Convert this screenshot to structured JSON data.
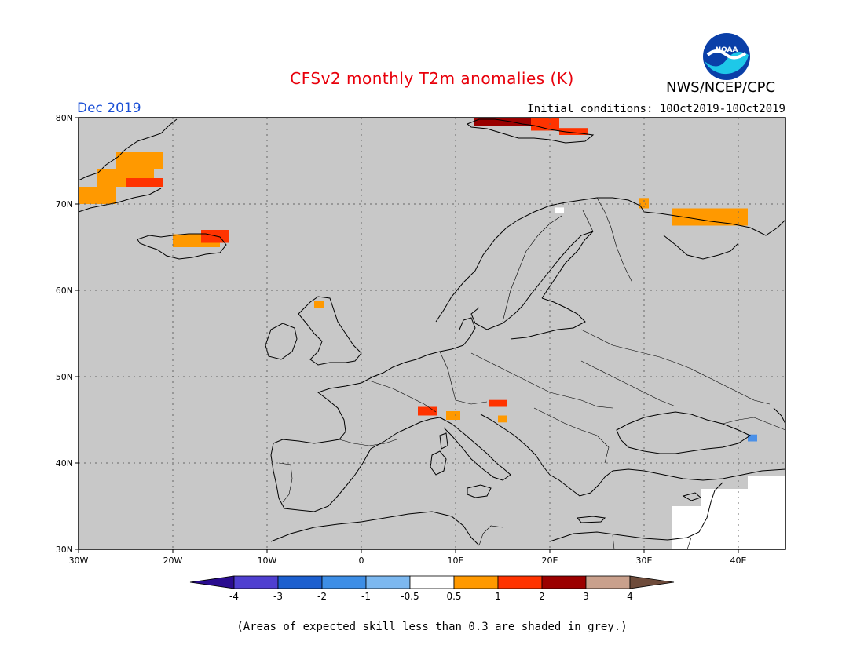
{
  "header": {
    "title": "CFSv2 monthly T2m anomalies (K)",
    "title_color": "#e8000b",
    "agency": "NWS/NCEP/CPC",
    "logo_text": "NOAA",
    "month_label": "Dec 2019",
    "month_color": "#1a4fd6",
    "initial_conditions": "Initial conditions: 10Oct2019-10Oct2019"
  },
  "map": {
    "lon_range": [
      -30,
      45
    ],
    "lat_range": [
      30,
      80
    ],
    "background": "#c8c8c8",
    "lat_ticks": [
      {
        "value": 80,
        "label": "80N"
      },
      {
        "value": 70,
        "label": "70N"
      },
      {
        "value": 60,
        "label": "60N"
      },
      {
        "value": 50,
        "label": "50N"
      },
      {
        "value": 40,
        "label": "40N"
      },
      {
        "value": 30,
        "label": "30N"
      }
    ],
    "lon_ticks": [
      {
        "value": -30,
        "label": "30W"
      },
      {
        "value": -20,
        "label": "20W"
      },
      {
        "value": -10,
        "label": "10W"
      },
      {
        "value": 0,
        "label": "0"
      },
      {
        "value": 10,
        "label": "10E"
      },
      {
        "value": 20,
        "label": "20E"
      },
      {
        "value": 30,
        "label": "30E"
      },
      {
        "value": 40,
        "label": "40E"
      }
    ]
  },
  "anomalies": [
    {
      "lon": -26,
      "lat": 74,
      "w": 5,
      "h": 2,
      "color": "#ff9900"
    },
    {
      "lon": -28,
      "lat": 72,
      "w": 6,
      "h": 2,
      "color": "#ff9900"
    },
    {
      "lon": -25,
      "lat": 72,
      "w": 4,
      "h": 1,
      "color": "#ff3300"
    },
    {
      "lon": -30,
      "lat": 70,
      "w": 4,
      "h": 2,
      "color": "#ff9900"
    },
    {
      "lon": -20,
      "lat": 65,
      "w": 5,
      "h": 1.5,
      "color": "#ff9900"
    },
    {
      "lon": -17,
      "lat": 65.5,
      "w": 3,
      "h": 1.5,
      "color": "#ff3300"
    },
    {
      "lon": -5,
      "lat": 58,
      "w": 1,
      "h": 0.8,
      "color": "#ff9900"
    },
    {
      "lon": 12,
      "lat": 79,
      "w": 6,
      "h": 1,
      "color": "#990000"
    },
    {
      "lon": 18,
      "lat": 78.5,
      "w": 3,
      "h": 1.5,
      "color": "#ff3300"
    },
    {
      "lon": 21,
      "lat": 78,
      "w": 3,
      "h": 0.8,
      "color": "#ff3300"
    },
    {
      "lon": 29.5,
      "lat": 69.5,
      "w": 1,
      "h": 1.2,
      "color": "#ff9900"
    },
    {
      "lon": 33,
      "lat": 67.5,
      "w": 8,
      "h": 2,
      "color": "#ff9900"
    },
    {
      "lon": 6,
      "lat": 45.5,
      "w": 2,
      "h": 1,
      "color": "#ff3300"
    },
    {
      "lon": 9,
      "lat": 45,
      "w": 1.5,
      "h": 1,
      "color": "#ff9900"
    },
    {
      "lon": 13.5,
      "lat": 46.5,
      "w": 2,
      "h": 0.8,
      "color": "#ff3300"
    },
    {
      "lon": 14.5,
      "lat": 44.7,
      "w": 1,
      "h": 0.8,
      "color": "#ff9900"
    },
    {
      "lon": 41,
      "lat": 42.5,
      "w": 1,
      "h": 0.8,
      "color": "#4a90e8"
    }
  ],
  "skill_mask": [
    {
      "lon": 36,
      "lat": 35,
      "w": 9,
      "h": 2
    },
    {
      "lon": 33,
      "lat": 30,
      "w": 12,
      "h": 5
    },
    {
      "lon": 41,
      "lat": 37,
      "w": 4,
      "h": 1.5
    },
    {
      "lon": 20.5,
      "lat": 69,
      "w": 1,
      "h": 0.6
    }
  ],
  "colorbar": {
    "colors": [
      "#2a0c8f",
      "#4f3fd0",
      "#1c5fcf",
      "#3d8ee6",
      "#7cb8f0",
      "#ffffff",
      "#ff9900",
      "#ff3300",
      "#9b0000",
      "#c9a08c",
      "#6e4b3a"
    ],
    "labels": [
      "-4",
      "-3",
      "-2",
      "-1",
      "-0.5",
      "0.5",
      "1",
      "2",
      "3",
      "4"
    ]
  },
  "footnote": "(Areas of expected skill less than 0.3 are shaded in grey.)"
}
